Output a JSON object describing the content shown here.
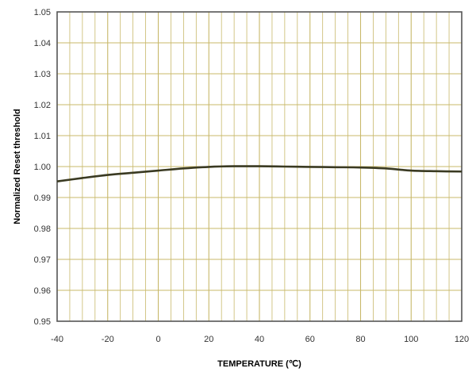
{
  "chart_data": {
    "type": "line",
    "title": "",
    "xlabel": "TEMPERATURE (℃)",
    "ylabel": "Normalized Reset threshold",
    "xlim": [
      -40,
      120
    ],
    "ylim": [
      0.95,
      1.05
    ],
    "x_ticks": [
      "-40",
      "-20",
      "0",
      "20",
      "40",
      "60",
      "80",
      "100",
      "120"
    ],
    "y_ticks": [
      "0.95",
      "0.96",
      "0.97",
      "0.98",
      "0.99",
      "1.00",
      "1.01",
      "1.02",
      "1.03",
      "1.04",
      "1.05"
    ],
    "grid": true,
    "legend": "none",
    "colors": {
      "grid": "#c8b86a",
      "line": "#3a3a22",
      "frame": "#555555"
    },
    "series": [
      {
        "x": [
          -40,
          -30,
          -20,
          -10,
          0,
          10,
          20,
          30,
          40,
          50,
          60,
          70,
          80,
          90,
          100,
          110,
          120
        ],
        "y": [
          0.9952,
          0.9963,
          0.9973,
          0.998,
          0.9987,
          0.9994,
          0.9999,
          1.0001,
          1.0001,
          1.0,
          0.9999,
          0.9998,
          0.9997,
          0.9994,
          0.9987,
          0.9985,
          0.9984
        ]
      }
    ]
  }
}
